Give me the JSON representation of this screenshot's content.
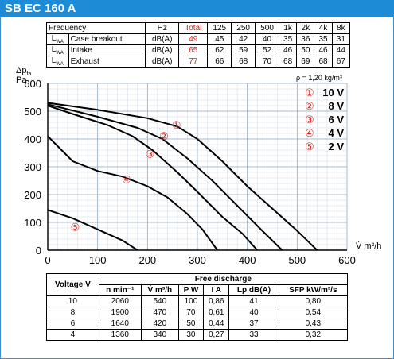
{
  "banner": {
    "title": "SB EC 160 A"
  },
  "sound_table": {
    "frequency_label": "Frequency",
    "hz_label": "Hz",
    "total_label": "Total",
    "bands": [
      "125",
      "250",
      "500",
      "1k",
      "2k",
      "4k",
      "8k"
    ],
    "lwa_symbol": "L",
    "lwa_subscript": "WA",
    "rows": [
      {
        "name": "Case breakout",
        "unit": "dB(A)",
        "total": "49",
        "values": [
          "45",
          "42",
          "40",
          "35",
          "36",
          "35",
          "31"
        ]
      },
      {
        "name": "Intake",
        "unit": "dB(A)",
        "total": "65",
        "values": [
          "62",
          "59",
          "52",
          "46",
          "50",
          "46",
          "44"
        ]
      },
      {
        "name": "Exhaust",
        "unit": "dB(A)",
        "total": "77",
        "values": [
          "66",
          "68",
          "70",
          "68",
          "69",
          "68",
          "67"
        ]
      }
    ]
  },
  "chart_data": {
    "type": "line",
    "ylabel_symbol": "Δp",
    "ylabel_subscript": "fa",
    "ylabel_unit": "Pa",
    "xlabel": "V̇ m³/h",
    "density_note": "ρ = 1,20 kg/m³",
    "xlim": [
      0,
      600
    ],
    "ylim": [
      0,
      600
    ],
    "xticks": [
      "0",
      "100",
      "200",
      "300",
      "400",
      "500",
      "600"
    ],
    "yticks": [
      "0",
      "100",
      "200",
      "300",
      "400",
      "500",
      "600"
    ],
    "grid": true,
    "legend_position": "top-right",
    "series": [
      {
        "marker": "①",
        "name": "10 V",
        "points": [
          [
            0,
            530
          ],
          [
            100,
            505
          ],
          [
            200,
            475
          ],
          [
            260,
            445
          ],
          [
            300,
            400
          ],
          [
            350,
            320
          ],
          [
            400,
            230
          ],
          [
            450,
            150
          ],
          [
            500,
            70
          ],
          [
            540,
            0
          ]
        ]
      },
      {
        "marker": "②",
        "name": "8 V",
        "points": [
          [
            0,
            525
          ],
          [
            100,
            480
          ],
          [
            180,
            440
          ],
          [
            230,
            400
          ],
          [
            280,
            330
          ],
          [
            330,
            250
          ],
          [
            380,
            160
          ],
          [
            430,
            70
          ],
          [
            470,
            0
          ]
        ]
      },
      {
        "marker": "③",
        "name": "6 V",
        "points": [
          [
            0,
            520
          ],
          [
            50,
            490
          ],
          [
            120,
            450
          ],
          [
            170,
            410
          ],
          [
            210,
            360
          ],
          [
            260,
            280
          ],
          [
            300,
            210
          ],
          [
            350,
            120
          ],
          [
            390,
            60
          ],
          [
            420,
            0
          ]
        ]
      },
      {
        "marker": "④",
        "name": "4 V",
        "points": [
          [
            0,
            410
          ],
          [
            50,
            320
          ],
          [
            100,
            285
          ],
          [
            150,
            265
          ],
          [
            200,
            230
          ],
          [
            240,
            190
          ],
          [
            280,
            130
          ],
          [
            310,
            75
          ],
          [
            340,
            0
          ]
        ]
      },
      {
        "marker": "⑤",
        "name": "2 V",
        "points": [
          [
            0,
            145
          ],
          [
            50,
            115
          ],
          [
            100,
            75
          ],
          [
            150,
            35
          ],
          [
            180,
            0
          ]
        ]
      }
    ],
    "curve_label_points": [
      [
        258,
        448
      ],
      [
        233,
        408
      ],
      [
        205,
        345
      ],
      [
        158,
        253
      ],
      [
        55,
        82
      ]
    ]
  },
  "performance_table": {
    "voltage_header": "Voltage V",
    "free_discharge_header": "Free discharge",
    "columns": [
      "n min⁻¹",
      "V̇ m³/h",
      "P W",
      "I A",
      "Lp dB(A)",
      "SFP kW/m³/s"
    ],
    "rows": [
      [
        "10",
        "2060",
        "540",
        "100",
        "0,86",
        "41",
        "0,80"
      ],
      [
        "8",
        "1900",
        "470",
        "70",
        "0,61",
        "40",
        "0,54"
      ],
      [
        "6",
        "1640",
        "420",
        "50",
        "0,44",
        "37",
        "0,43"
      ],
      [
        "4",
        "1360",
        "340",
        "30",
        "0,27",
        "33",
        "0,32"
      ]
    ]
  },
  "colors": {
    "banner": "#1e8bd6",
    "accent_red": "#d0201a",
    "curve": "#000000",
    "grid": "#b8c8d8"
  }
}
